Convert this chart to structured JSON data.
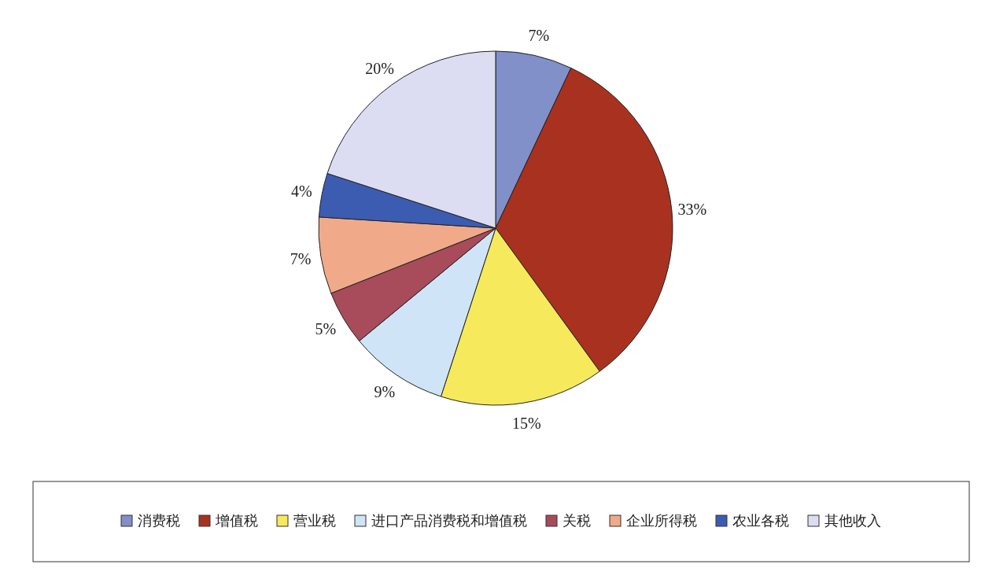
{
  "chart_data": {
    "type": "pie",
    "categories": [
      "消费税",
      "增值税",
      "营业税",
      "进口产品消费税和增值税",
      "关税",
      "企业所得税",
      "农业各税",
      "其他收入"
    ],
    "values": [
      7,
      33,
      15,
      9,
      5,
      7,
      4,
      20
    ],
    "colors": [
      "#8190c8",
      "#a8321f",
      "#f6e95c",
      "#cfe5f7",
      "#a84b5a",
      "#f0aa8a",
      "#3c5cb2",
      "#dcdcf2"
    ],
    "value_labels": [
      "7%",
      "33%",
      "15%",
      "9%",
      "5%",
      "7%",
      "4%",
      "20%"
    ],
    "legend": "bottom"
  }
}
